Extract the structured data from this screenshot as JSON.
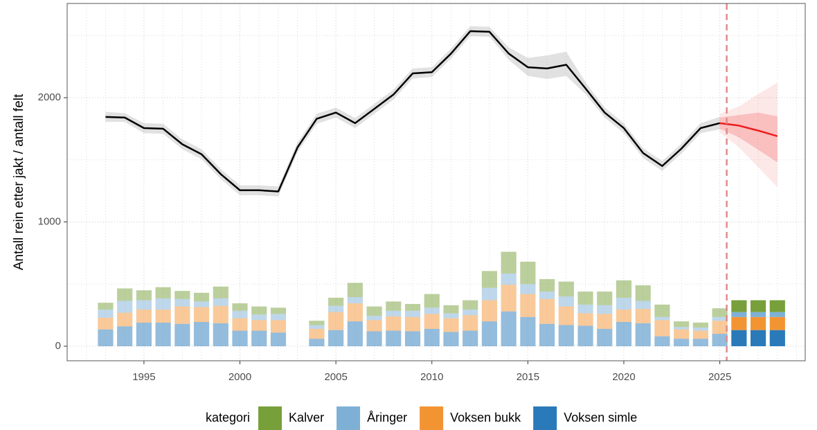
{
  "chart_data": {
    "type": "combo",
    "y_label": "Antall rein etter jakt / antall felt",
    "xlim": [
      1991,
      2029.45
    ],
    "xticks": [
      1995,
      2000,
      2005,
      2010,
      2015,
      2020,
      2025
    ],
    "ylim": [
      -117,
      2758
    ],
    "yticks": [
      0,
      1000,
      2000
    ],
    "grid": true,
    "legend_title": "kategori",
    "legend_position": "bottom",
    "forecast_from": 2025.36,
    "bar_x": [
      1993,
      1994,
      1995,
      1996,
      1997,
      1998,
      1999,
      2000,
      2001,
      2002,
      2004,
      2005,
      2006,
      2007,
      2008,
      2009,
      2010,
      2011,
      2012,
      2013,
      2014,
      2015,
      2016,
      2017,
      2018,
      2019,
      2020,
      2021,
      2022,
      2023,
      2024,
      2025,
      2026,
      2027,
      2028
    ],
    "series": [
      {
        "name": "Kalver",
        "color": "#77a03a",
        "values": [
          55,
          100,
          80,
          90,
          65,
          70,
          95,
          60,
          65,
          50,
          35,
          65,
          115,
          75,
          75,
          55,
          110,
          65,
          75,
          135,
          175,
          180,
          100,
          120,
          105,
          110,
          140,
          125,
          100,
          45,
          40,
          70,
          95,
          95,
          95
        ]
      },
      {
        "name": "Åringer",
        "color": "#7eb0d5",
        "values": [
          65,
          95,
          75,
          90,
          60,
          45,
          60,
          60,
          45,
          50,
          30,
          50,
          50,
          35,
          45,
          50,
          50,
          40,
          45,
          100,
          90,
          80,
          60,
          80,
          70,
          70,
          95,
          65,
          25,
          20,
          25,
          30,
          40,
          40,
          40
        ]
      },
      {
        "name": "Voksen bukk",
        "color": "#f39433",
        "values": [
          95,
          110,
          105,
          105,
          140,
          120,
          140,
          100,
          85,
          100,
          80,
          145,
          145,
          90,
          115,
          115,
          120,
          110,
          125,
          170,
          215,
          185,
          200,
          150,
          100,
          120,
          100,
          115,
          130,
          75,
          65,
          105,
          105,
          105,
          105
        ]
      },
      {
        "name": "Voksen simle",
        "color": "#2a7ab9",
        "values": [
          135,
          160,
          190,
          190,
          180,
          195,
          185,
          125,
          125,
          110,
          60,
          130,
          200,
          120,
          125,
          120,
          140,
          115,
          125,
          200,
          280,
          235,
          180,
          170,
          165,
          140,
          195,
          185,
          80,
          60,
          60,
          100,
          130,
          130,
          130
        ]
      }
    ],
    "trend": {
      "color": "#000000",
      "x": [
        1993,
        1994,
        1995,
        1996,
        1997,
        1998,
        1999,
        2000,
        2001,
        2002,
        2003,
        2004,
        2005,
        2006,
        2007,
        2008,
        2009,
        2010,
        2011,
        2012,
        2013,
        2014,
        2015,
        2016,
        2017,
        2018,
        2019,
        2020,
        2021,
        2022,
        2023,
        2024,
        2025
      ],
      "values": [
        1845,
        1840,
        1755,
        1750,
        1625,
        1545,
        1385,
        1255,
        1255,
        1245,
        1600,
        1830,
        1880,
        1795,
        1910,
        2025,
        2195,
        2205,
        2355,
        2535,
        2530,
        2355,
        2245,
        2235,
        2265,
        2075,
        1880,
        1755,
        1555,
        1450,
        1590,
        1755,
        1795
      ],
      "lower": [
        1805,
        1805,
        1715,
        1710,
        1585,
        1505,
        1345,
        1215,
        1215,
        1205,
        1560,
        1790,
        1840,
        1755,
        1870,
        1985,
        2155,
        2165,
        2315,
        2495,
        2490,
        2305,
        2175,
        2150,
        2175,
        2030,
        1840,
        1715,
        1515,
        1410,
        1550,
        1715,
        1745
      ],
      "upper": [
        1885,
        1875,
        1795,
        1790,
        1665,
        1585,
        1425,
        1295,
        1295,
        1285,
        1640,
        1870,
        1920,
        1835,
        1950,
        2065,
        2235,
        2245,
        2395,
        2575,
        2570,
        2405,
        2320,
        2340,
        2370,
        2125,
        1920,
        1795,
        1595,
        1490,
        1630,
        1795,
        1845
      ]
    },
    "forecast": {
      "color": "#ee1c1c",
      "x": [
        2025,
        2026,
        2027,
        2028
      ],
      "values": [
        1795,
        1775,
        1735,
        1690
      ],
      "lower_80": [
        1750,
        1680,
        1580,
        1480
      ],
      "upper_80": [
        1840,
        1860,
        1880,
        1850
      ],
      "lower_95": [
        1720,
        1600,
        1440,
        1280
      ],
      "upper_95": [
        1870,
        1930,
        2030,
        2120
      ]
    }
  }
}
